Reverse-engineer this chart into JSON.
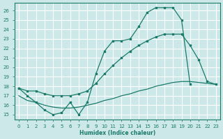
{
  "xlabel": "Humidex (Indice chaleur)",
  "line_color": "#1a7a6a",
  "bg_color": "#cce8e8",
  "grid_color": "#ffffff",
  "ylim": [
    14.5,
    26.8
  ],
  "xlim": [
    -0.5,
    23.5
  ],
  "yticks": [
    15,
    16,
    17,
    18,
    19,
    20,
    21,
    22,
    23,
    24,
    25,
    26
  ],
  "xticks": [
    0,
    1,
    2,
    3,
    4,
    5,
    6,
    7,
    8,
    9,
    10,
    11,
    12,
    13,
    14,
    15,
    16,
    17,
    18,
    19,
    20,
    21,
    22,
    23
  ],
  "line1_x": [
    0,
    1,
    2,
    3,
    4,
    5,
    6,
    7,
    8,
    9,
    10,
    11,
    12,
    13,
    14,
    15,
    16,
    17,
    18,
    19,
    20
  ],
  "line1_y": [
    17.8,
    17.0,
    16.3,
    15.5,
    15.0,
    15.2,
    16.3,
    15.0,
    16.3,
    19.3,
    21.7,
    22.8,
    22.8,
    23.0,
    24.3,
    25.8,
    26.3,
    26.3,
    26.3,
    25.0,
    18.2
  ],
  "line2_x": [
    0,
    1,
    2,
    3,
    4,
    5,
    6,
    7,
    8,
    9,
    10,
    11,
    12,
    13,
    14,
    15,
    16,
    17,
    18,
    19,
    20,
    21,
    22,
    23
  ],
  "line2_y": [
    17.8,
    17.5,
    17.5,
    17.2,
    17.0,
    17.0,
    17.0,
    17.2,
    17.5,
    18.3,
    19.3,
    20.2,
    21.0,
    21.7,
    22.3,
    22.8,
    23.2,
    23.5,
    23.5,
    23.5,
    22.3,
    20.8,
    18.5,
    18.2
  ],
  "line3_x": [
    0,
    1,
    2,
    3,
    4,
    5,
    6,
    7,
    8,
    9,
    10,
    11,
    12,
    13,
    14,
    15,
    16,
    17,
    18,
    19,
    20,
    21,
    22,
    23
  ],
  "line3_y": [
    17.0,
    16.5,
    16.3,
    16.0,
    15.8,
    15.7,
    15.7,
    15.8,
    16.0,
    16.2,
    16.5,
    16.7,
    17.0,
    17.2,
    17.5,
    17.7,
    18.0,
    18.2,
    18.4,
    18.5,
    18.5,
    18.4,
    18.3,
    18.2
  ]
}
